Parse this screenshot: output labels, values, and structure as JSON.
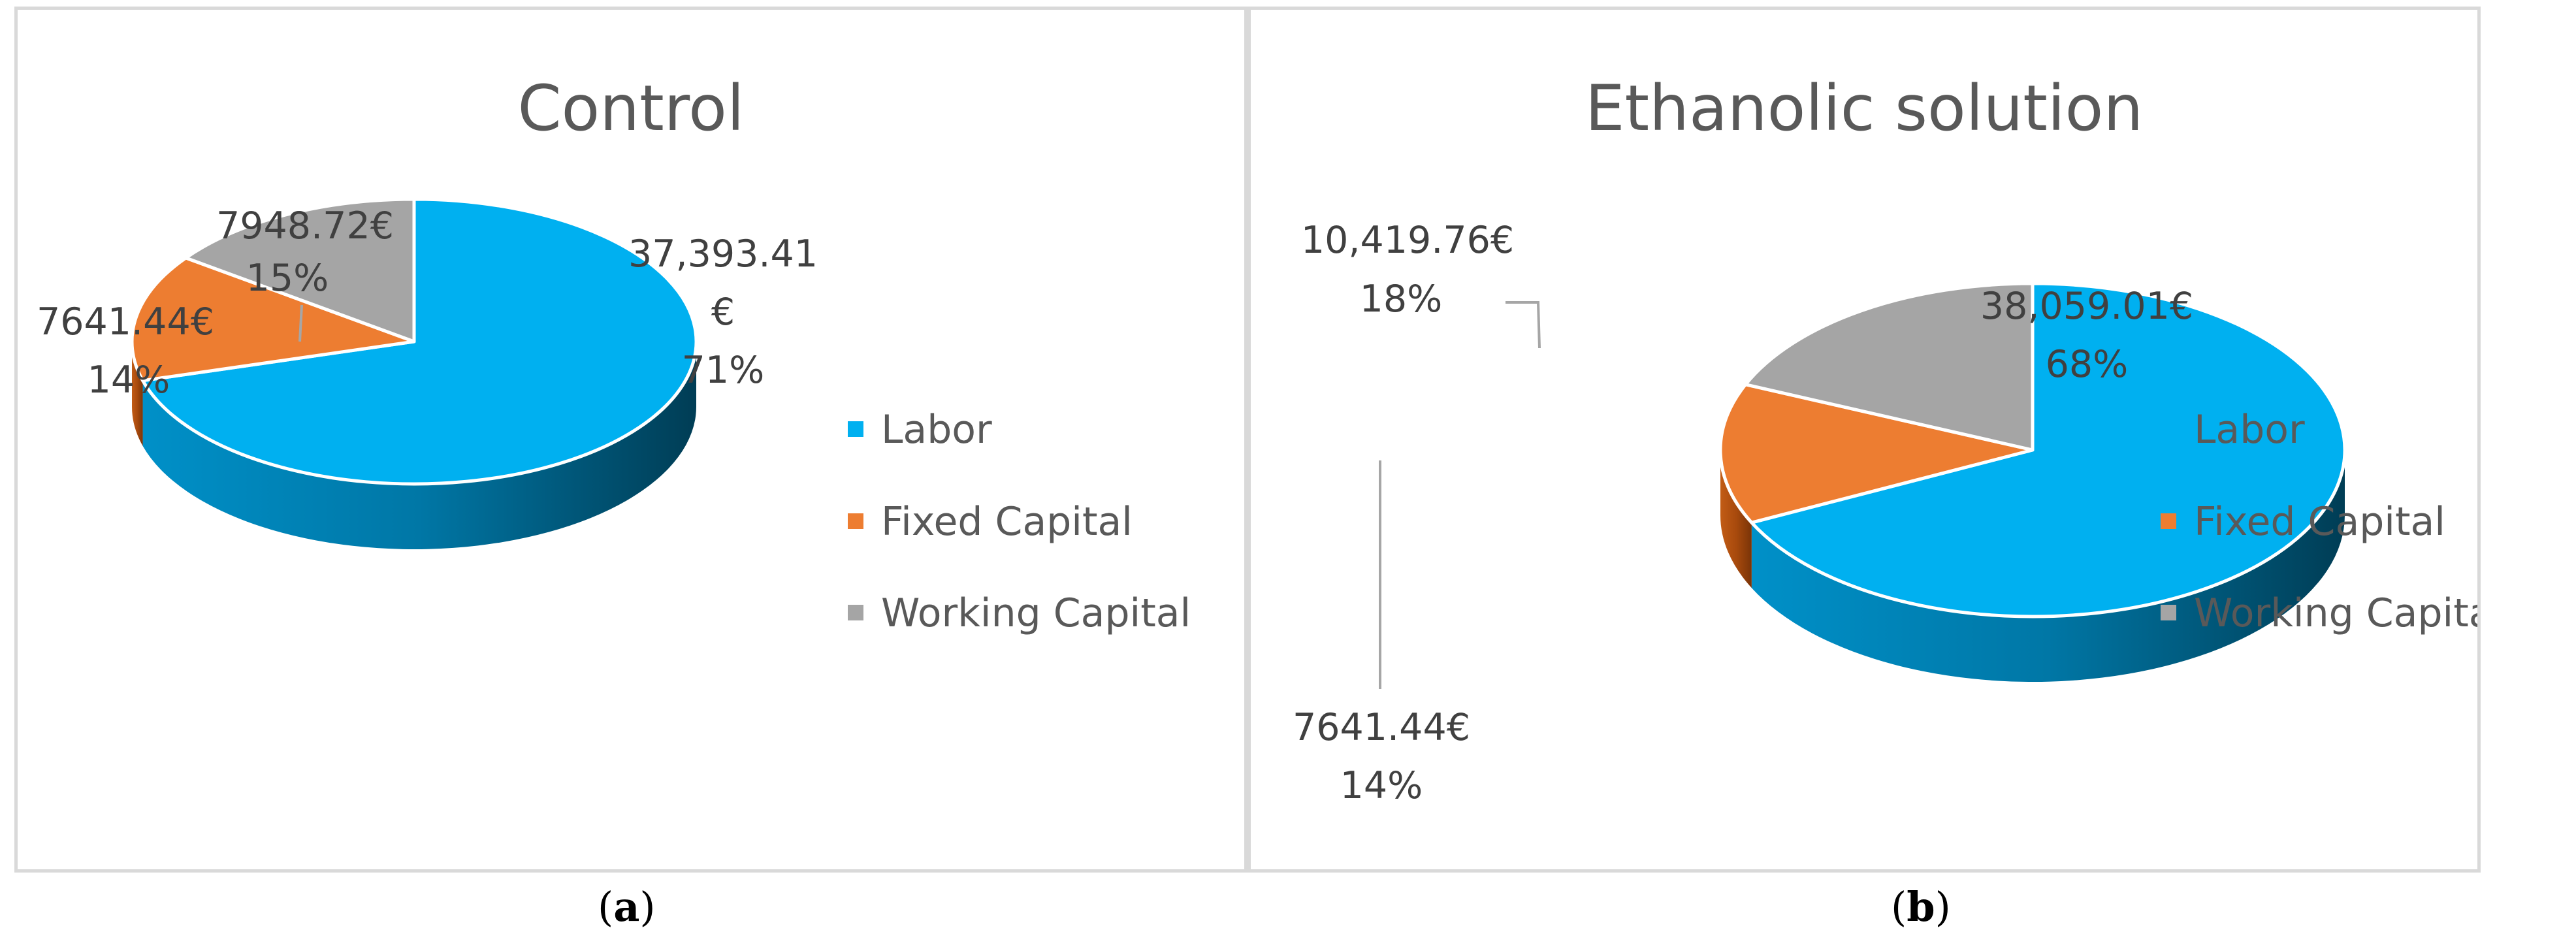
{
  "chart_data": [
    {
      "type": "pie",
      "title": "Control",
      "categories": [
        "Labor",
        "Fixed Capital",
        "Working Capital"
      ],
      "values": [
        37393.41,
        7641.44,
        7948.72
      ],
      "percentages": [
        71,
        14,
        15
      ],
      "value_labels": [
        "37,393.41",
        "7641.44€",
        "7948.72€"
      ],
      "value_label_currency_line": "€",
      "percent_labels": [
        "71%",
        "14%",
        "15%"
      ],
      "colors": [
        "#00b0f0",
        "#ed7d31",
        "#a5a5a5"
      ],
      "legend_position": "right",
      "caption_letter": "a"
    },
    {
      "type": "pie",
      "title": "Ethanolic solution",
      "categories": [
        "Labor",
        "Fixed Capital",
        "Working Capital"
      ],
      "values": [
        38059.01,
        7641.44,
        10419.76
      ],
      "percentages": [
        68,
        14,
        18
      ],
      "value_labels": [
        "38,059.01€",
        "7641.44€",
        "10,419.76€"
      ],
      "percent_labels": [
        "68%",
        "14%",
        "18%"
      ],
      "colors": [
        "#00b0f0",
        "#ed7d31",
        "#a5a5a5"
      ],
      "legend_position": "right",
      "caption_letter": "b"
    }
  ],
  "captions": {
    "open": "(",
    "close": ")"
  }
}
